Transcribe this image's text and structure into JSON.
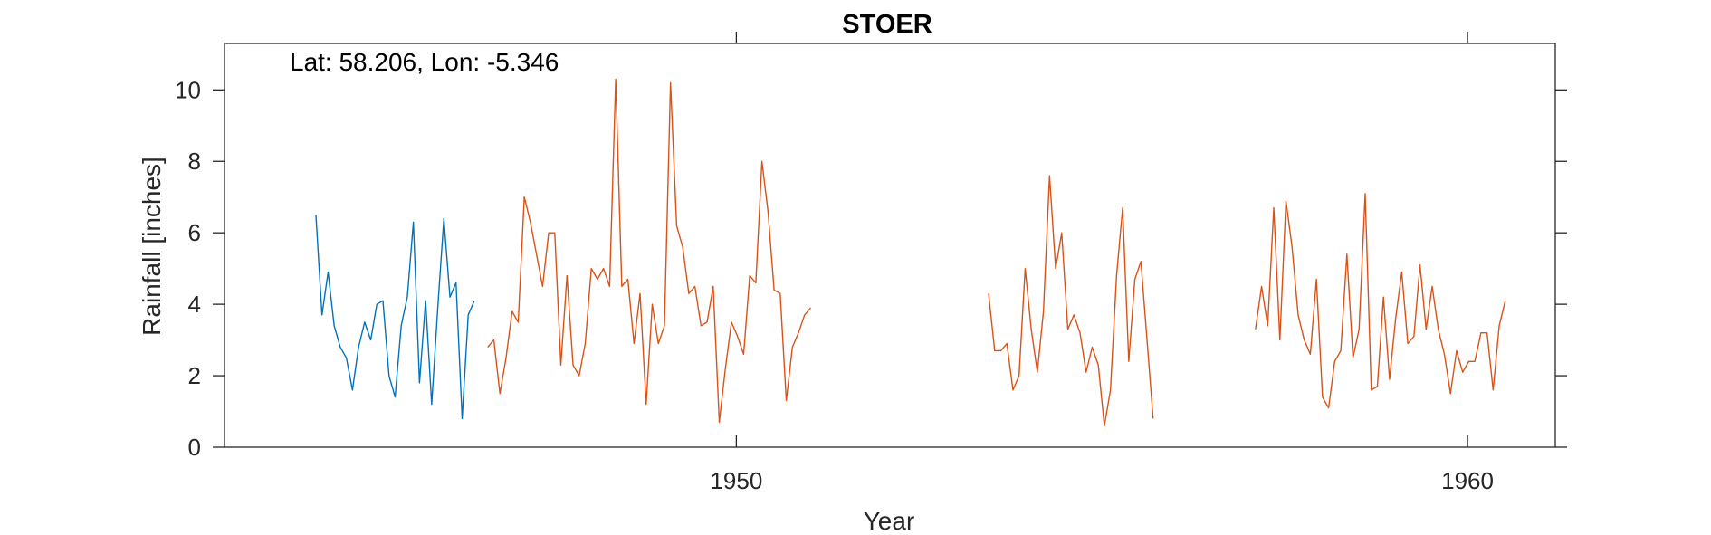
{
  "chart_data": {
    "type": "line",
    "title": "STOER",
    "xlabel": "Year",
    "ylabel": "Rainfall [inches]",
    "annotation": "Lat: 58.206, Lon: -5.346",
    "xlim": [
      1943.0,
      1961.2
    ],
    "ylim": [
      0,
      11.3
    ],
    "xticks": [
      1950,
      1960
    ],
    "yticks": [
      0,
      2,
      4,
      6,
      8,
      10
    ],
    "grid": false,
    "legend": "none",
    "series": [
      {
        "color": "#0072BD",
        "segments": [
          {
            "x_start": 1944.25,
            "x_step": 0.08333,
            "values": [
              6.5,
              3.7,
              4.9,
              3.4,
              2.8,
              2.5,
              1.6,
              2.8,
              3.5,
              3.0,
              4.0,
              4.1,
              2.0,
              1.4,
              3.4,
              4.2,
              6.3,
              1.8,
              4.1,
              1.2,
              3.9,
              6.4,
              4.2,
              4.6,
              0.8,
              3.7,
              4.1
            ]
          }
        ]
      },
      {
        "color": "#D95319",
        "segments": [
          {
            "x_start": 1946.6,
            "x_step": 0.08333,
            "values": [
              2.8,
              3.0,
              1.5,
              2.5,
              3.8,
              3.5,
              7.0,
              6.3,
              5.4,
              4.5,
              6.0,
              6.0,
              2.3,
              4.8,
              2.3,
              2.0,
              2.9,
              5.0,
              4.7,
              5.0,
              4.5,
              10.3,
              4.5,
              4.7,
              2.9,
              4.3,
              1.2,
              4.0,
              2.9,
              3.4,
              10.2,
              6.2,
              5.6,
              4.3,
              4.5,
              3.4,
              3.5,
              4.5,
              0.7,
              2.2,
              3.5,
              3.1,
              2.6,
              4.8,
              4.6,
              8.0,
              6.6,
              4.4,
              4.3,
              1.3,
              2.8,
              3.2,
              3.7,
              3.9
            ]
          },
          {
            "x_start": 1953.45,
            "x_step": 0.08333,
            "values": [
              4.3,
              2.7,
              2.7,
              2.9,
              1.6,
              2.0,
              5.0,
              3.3,
              2.1,
              3.8,
              7.6,
              5.0,
              6.0,
              3.3,
              3.7,
              3.2,
              2.1,
              2.8,
              2.3,
              0.6,
              1.6,
              4.8,
              6.7,
              2.4,
              4.7,
              5.2,
              3.0,
              0.8
            ]
          },
          {
            "x_start": 1957.1,
            "x_step": 0.08333,
            "values": [
              3.3,
              4.5,
              3.4,
              6.7,
              3.0,
              6.9,
              5.6,
              3.7,
              3.0,
              2.6,
              4.7,
              1.4,
              1.1,
              2.4,
              2.7,
              5.4,
              2.5,
              3.3,
              7.1,
              1.6,
              1.7,
              4.2,
              1.9,
              3.6,
              4.9,
              2.9,
              3.1,
              5.1,
              3.3,
              4.5,
              3.3,
              2.6,
              1.5,
              2.7,
              2.1,
              2.4,
              2.4,
              3.2,
              3.2,
              1.6,
              3.4,
              4.1
            ]
          }
        ]
      }
    ]
  }
}
